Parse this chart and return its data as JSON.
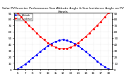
{
  "title": "Solar PV/Inverter Performance Sun Altitude Angle & Sun Incidence Angle on PV Panels",
  "legend_labels": [
    "Sun Altitude",
    "Sun Incidence"
  ],
  "time_hours": [
    6,
    6.5,
    7,
    7.5,
    8,
    8.5,
    9,
    9.5,
    10,
    10.5,
    11,
    11.5,
    12,
    12.5,
    13,
    13.5,
    14,
    14.5,
    15,
    15.5,
    16,
    16.5,
    17,
    17.5,
    18
  ],
  "sun_altitude": [
    0,
    4,
    8,
    13,
    18,
    23,
    28,
    33,
    37,
    41,
    44,
    46,
    47,
    46,
    44,
    41,
    37,
    33,
    28,
    23,
    18,
    13,
    8,
    4,
    0
  ],
  "sun_incidence": [
    90,
    83,
    76,
    70,
    64,
    58,
    52,
    47,
    42,
    38,
    35,
    33,
    33,
    33,
    35,
    38,
    42,
    47,
    52,
    58,
    64,
    70,
    76,
    83,
    90
  ],
  "blue_color": "#0000ff",
  "red_color": "#ff0000",
  "bg_color": "#ffffff",
  "ylim_left": [
    0,
    90
  ],
  "ylim_right": [
    0,
    90
  ],
  "xlim": [
    5.5,
    18.5
  ],
  "title_fontsize": 3.2,
  "tick_fontsize": 3.0,
  "marker_size": 1.2,
  "linewidth": 0.6,
  "grid_color": "#cccccc",
  "grid_linestyle": ":",
  "grid_linewidth": 0.3
}
